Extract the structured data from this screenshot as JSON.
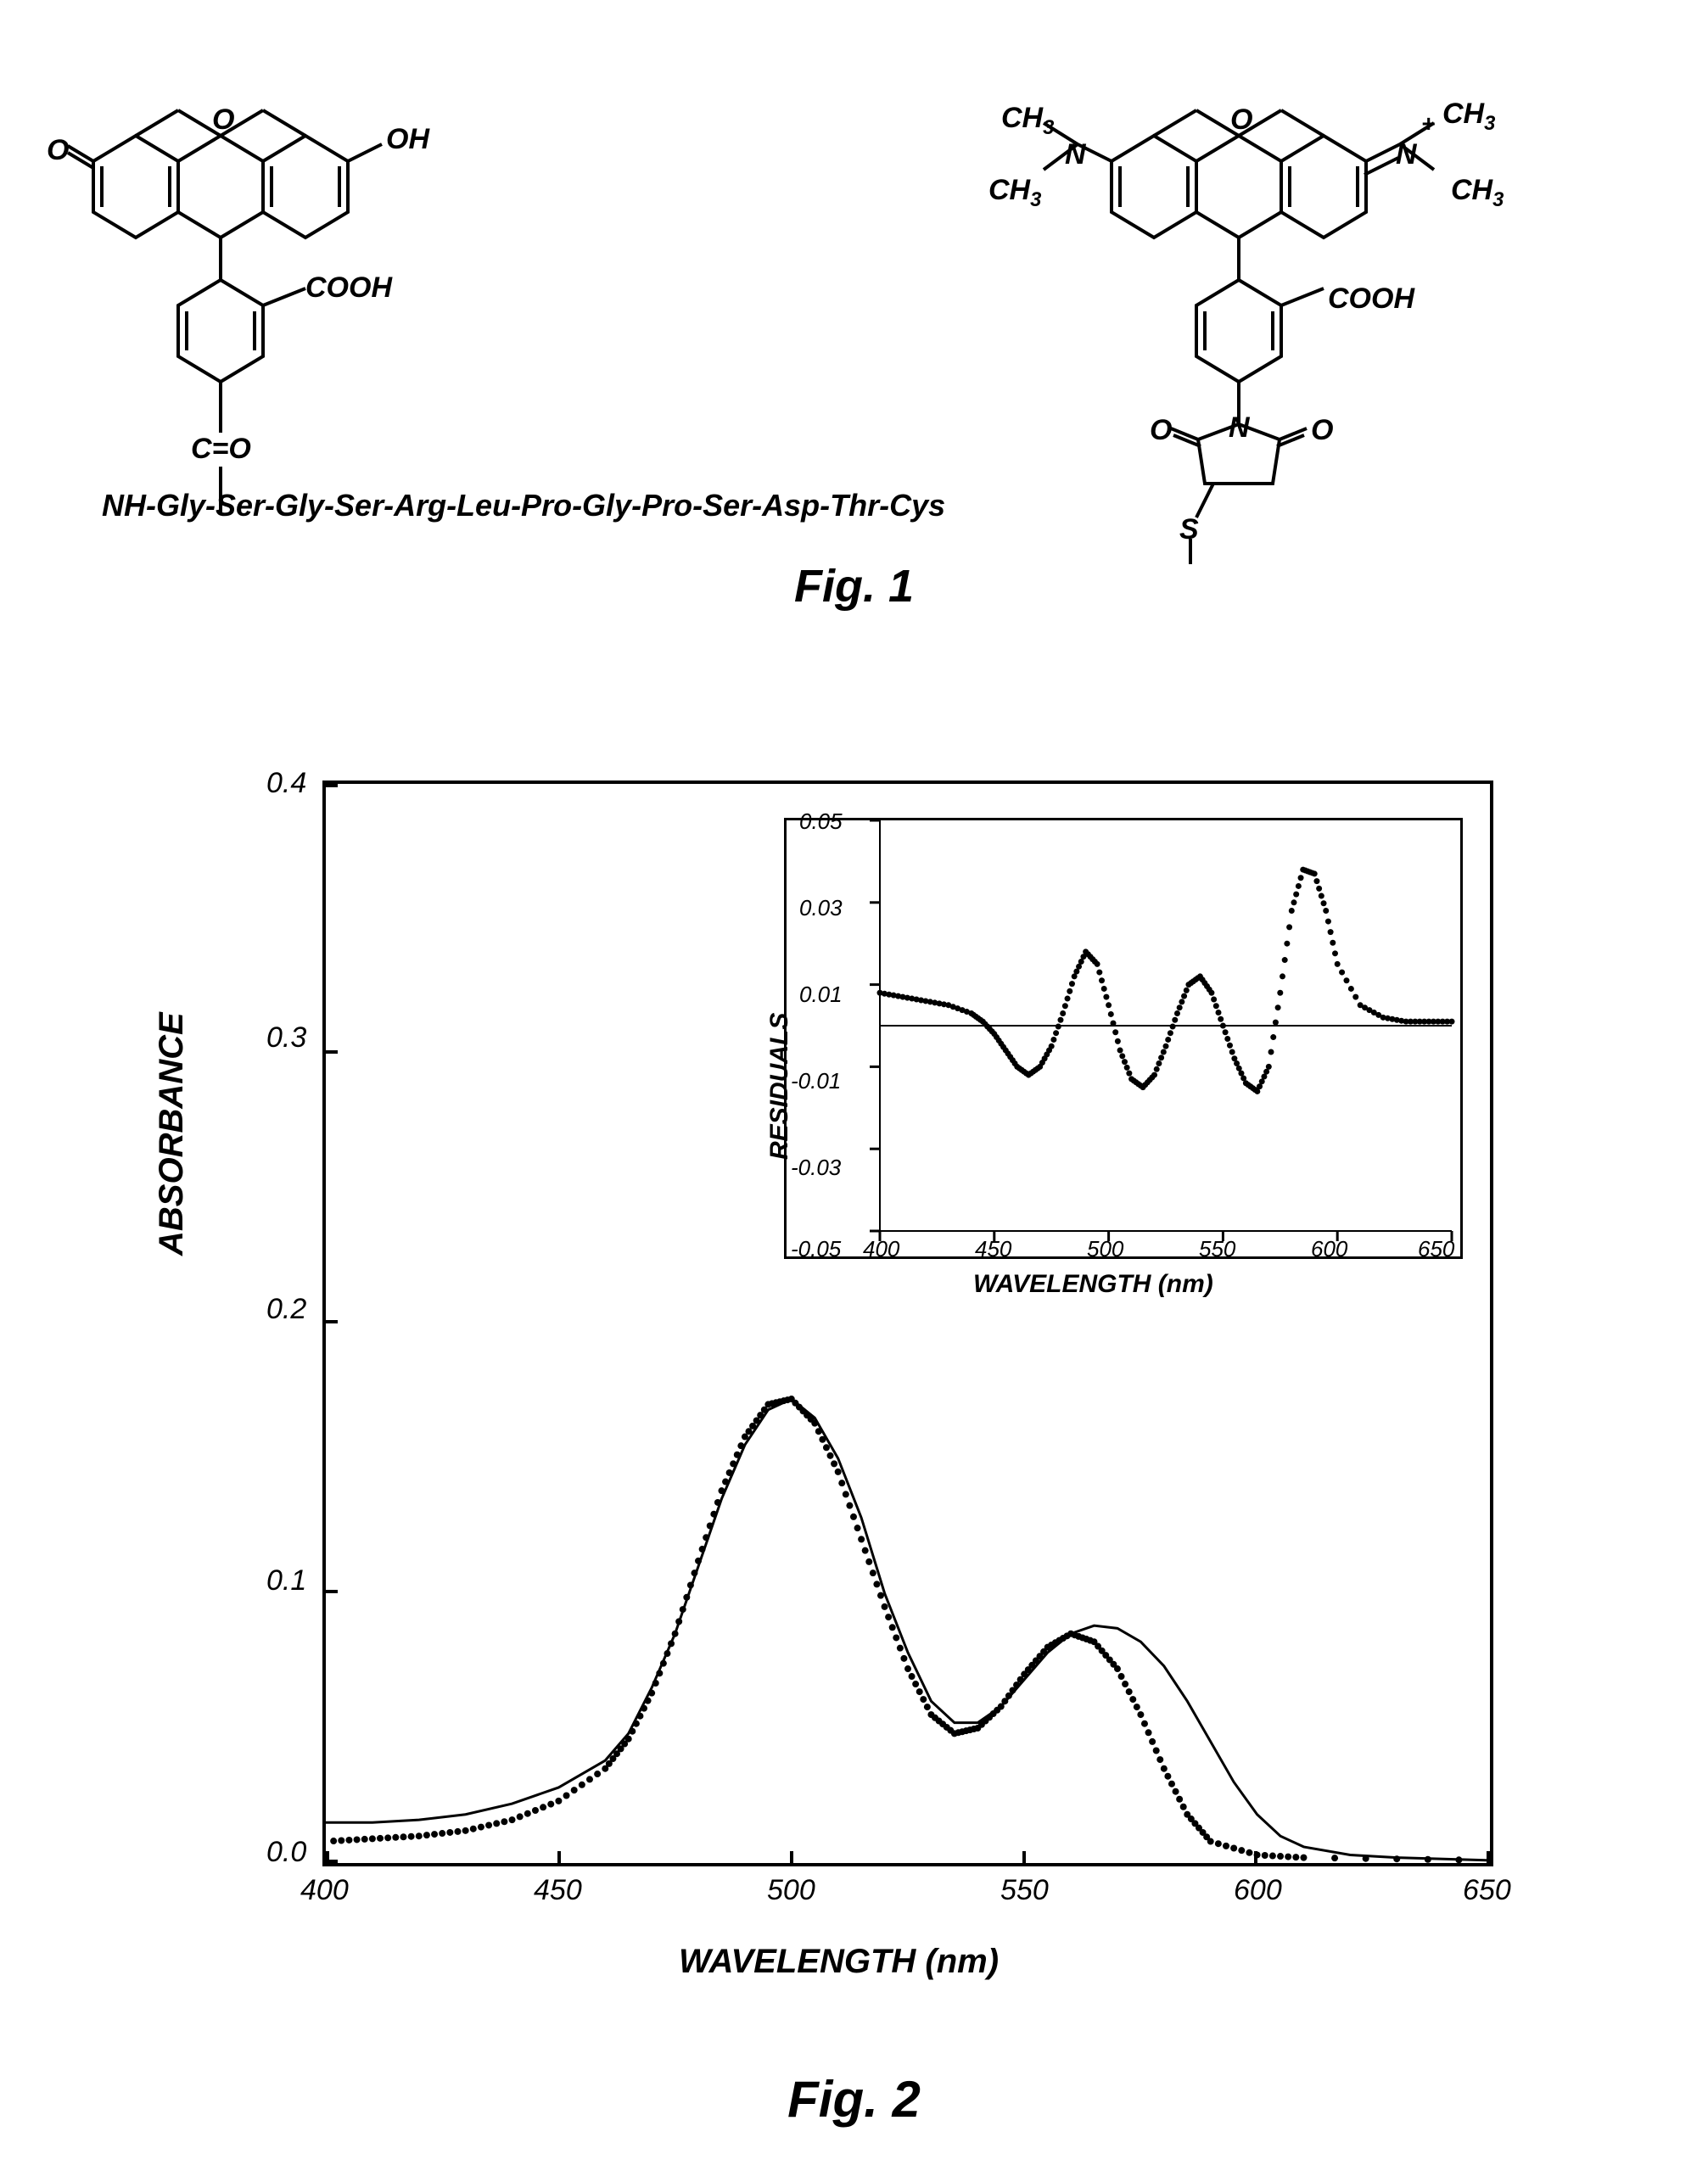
{
  "fig1": {
    "label": "Fig. 1",
    "peptide_sequence": "NH-Gly-Ser-Gly-Ser-Arg-Leu-Pro-Gly-Pro-Ser-Asp-Thr-Cys",
    "left_structure": {
      "labels": {
        "oxygen_left": "O",
        "oxygen_bridge": "O",
        "hydroxyl": "OH",
        "carboxyl": "COOH",
        "carbonyl": "C=O"
      }
    },
    "right_structure": {
      "labels": {
        "ch3_tl": "CH₃",
        "ch3_bl": "CH₃",
        "ch3_tr": "CH₃",
        "ch3_br": "CH₃",
        "n_left": "N",
        "n_right": "N",
        "plus": "+",
        "oxygen_bridge": "O",
        "carboxyl": "COOH",
        "oxygen_l": "O",
        "oxygen_r": "O",
        "n_ring": "N",
        "sulfur": "S"
      }
    }
  },
  "fig2": {
    "label": "Fig. 2",
    "main_chart": {
      "type": "line",
      "xlabel": "WAVELENGTH (nm)",
      "ylabel": "ABSORBANCE",
      "xlim": [
        400,
        650
      ],
      "ylim": [
        0,
        0.4
      ],
      "xticks": [
        400,
        450,
        500,
        550,
        600,
        650
      ],
      "yticks": [
        0.0,
        0.1,
        0.2,
        0.3,
        0.4
      ],
      "line_color": "#000000",
      "line_width": 3,
      "dot_color": "#000000",
      "dot_size": 4,
      "background_color": "#ffffff",
      "series_solid": {
        "x": [
          400,
          410,
          420,
          430,
          440,
          450,
          460,
          465,
          470,
          475,
          480,
          485,
          490,
          495,
          500,
          505,
          510,
          515,
          520,
          525,
          530,
          535,
          540,
          545,
          550,
          555,
          560,
          565,
          570,
          575,
          580,
          585,
          590,
          595,
          600,
          605,
          610,
          620,
          630,
          650
        ],
        "y": [
          0.015,
          0.015,
          0.016,
          0.018,
          0.022,
          0.028,
          0.038,
          0.048,
          0.065,
          0.085,
          0.11,
          0.135,
          0.155,
          0.168,
          0.172,
          0.165,
          0.15,
          0.128,
          0.1,
          0.078,
          0.06,
          0.052,
          0.052,
          0.058,
          0.068,
          0.078,
          0.085,
          0.088,
          0.087,
          0.082,
          0.073,
          0.06,
          0.045,
          0.03,
          0.018,
          0.01,
          0.006,
          0.003,
          0.002,
          0.001
        ]
      },
      "series_dotted": {
        "x": [
          400,
          410,
          420,
          430,
          440,
          450,
          460,
          465,
          470,
          475,
          480,
          485,
          490,
          495,
          500,
          505,
          510,
          515,
          520,
          525,
          530,
          535,
          540,
          545,
          550,
          555,
          560,
          565,
          570,
          575,
          580,
          585,
          590,
          600,
          610,
          650
        ],
        "y": [
          0.008,
          0.009,
          0.01,
          0.012,
          0.016,
          0.023,
          0.035,
          0.046,
          0.063,
          0.085,
          0.112,
          0.138,
          0.158,
          0.17,
          0.172,
          0.163,
          0.145,
          0.12,
          0.095,
          0.072,
          0.055,
          0.048,
          0.05,
          0.058,
          0.07,
          0.08,
          0.085,
          0.082,
          0.072,
          0.055,
          0.035,
          0.018,
          0.008,
          0.003,
          0.002,
          0.001
        ]
      }
    },
    "inset_chart": {
      "type": "scatter",
      "xlabel": "WAVELENGTH (nm)",
      "ylabel": "RESIDUALS",
      "xlim": [
        400,
        650
      ],
      "ylim": [
        -0.05,
        0.05
      ],
      "xticks": [
        400,
        450,
        500,
        550,
        600,
        650
      ],
      "yticks": [
        -0.05,
        -0.03,
        -0.01,
        0.01,
        0.03,
        0.05
      ],
      "zero_line_color": "#000000",
      "dot_color": "#000000",
      "dot_size": 3.5,
      "series": {
        "x": [
          400,
          410,
          420,
          430,
          440,
          445,
          450,
          455,
          460,
          465,
          470,
          475,
          480,
          485,
          490,
          495,
          500,
          505,
          510,
          515,
          520,
          525,
          530,
          535,
          540,
          545,
          550,
          555,
          560,
          565,
          570,
          575,
          580,
          585,
          590,
          595,
          600,
          610,
          620,
          630,
          640,
          650
        ],
        "y": [
          0.008,
          0.007,
          0.006,
          0.005,
          0.003,
          0.001,
          -0.002,
          -0.006,
          -0.01,
          -0.012,
          -0.01,
          -0.005,
          0.003,
          0.012,
          0.018,
          0.015,
          0.005,
          -0.006,
          -0.013,
          -0.015,
          -0.012,
          -0.005,
          0.003,
          0.01,
          0.012,
          0.008,
          0.0,
          -0.008,
          -0.014,
          -0.016,
          -0.01,
          0.008,
          0.028,
          0.038,
          0.037,
          0.028,
          0.015,
          0.005,
          0.002,
          0.001,
          0.001,
          0.001
        ]
      }
    }
  }
}
